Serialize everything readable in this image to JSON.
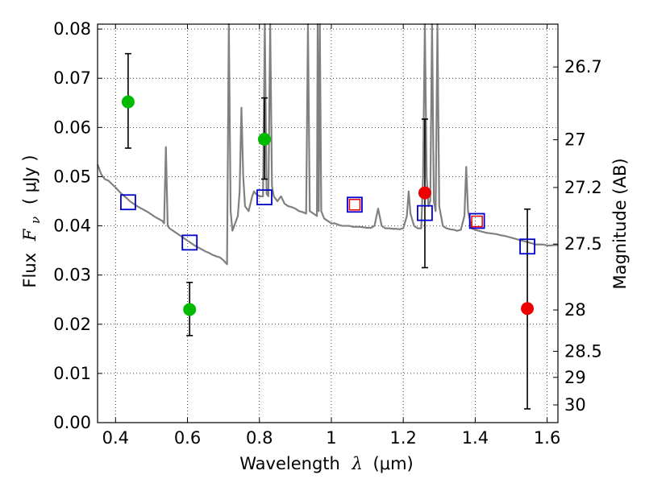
{
  "chart_data": {
    "type": "scatter",
    "title": "",
    "xlabel": "Wavelength",
    "xlabel_symbol": "λ",
    "xlabel_unit": "(μm)",
    "ylabel": "Flux",
    "ylabel_symbol": "F",
    "ylabel_symbol_sub": "ν",
    "ylabel_unit": "( μJy )",
    "y2label": "Magnitude (AB)",
    "xlim": [
      0.35,
      1.63
    ],
    "ylim": [
      0.0,
      0.081
    ],
    "grid": true,
    "x_ticks": [
      {
        "value": 0.4,
        "label": "0.4"
      },
      {
        "value": 0.6,
        "label": "0.6"
      },
      {
        "value": 0.8,
        "label": "0.8"
      },
      {
        "value": 1.0,
        "label": "1"
      },
      {
        "value": 1.2,
        "label": "1.2"
      },
      {
        "value": 1.4,
        "label": "1.4"
      },
      {
        "value": 1.6,
        "label": "1.6"
      }
    ],
    "y_ticks": [
      {
        "value": 0.0,
        "label": "0.00"
      },
      {
        "value": 0.01,
        "label": "0.01"
      },
      {
        "value": 0.02,
        "label": "0.02"
      },
      {
        "value": 0.03,
        "label": "0.03"
      },
      {
        "value": 0.04,
        "label": "0.04"
      },
      {
        "value": 0.05,
        "label": "0.05"
      },
      {
        "value": 0.06,
        "label": "0.06"
      },
      {
        "value": 0.07,
        "label": "0.07"
      },
      {
        "value": 0.08,
        "label": "0.08"
      }
    ],
    "y2_ticks": [
      {
        "flux": 0.0723,
        "label": "26.7"
      },
      {
        "flux": 0.0575,
        "label": "27"
      },
      {
        "flux": 0.0478,
        "label": "27.2"
      },
      {
        "flux": 0.0363,
        "label": "27.5"
      },
      {
        "flux": 0.0229,
        "label": "28"
      },
      {
        "flux": 0.0145,
        "label": "28.5"
      },
      {
        "flux": 0.0092,
        "label": "29"
      },
      {
        "flux": 0.0036,
        "label": "30"
      }
    ],
    "series": [
      {
        "kind": "spectrum",
        "color": "#808080",
        "points": [
          [
            0.35,
            0.0525
          ],
          [
            0.36,
            0.0505
          ],
          [
            0.37,
            0.0495
          ],
          [
            0.38,
            0.0492
          ],
          [
            0.39,
            0.0485
          ],
          [
            0.4,
            0.0478
          ],
          [
            0.41,
            0.047
          ],
          [
            0.42,
            0.0463
          ],
          [
            0.43,
            0.0457
          ],
          [
            0.44,
            0.045
          ],
          [
            0.45,
            0.0445
          ],
          [
            0.46,
            0.044
          ],
          [
            0.47,
            0.0436
          ],
          [
            0.48,
            0.0432
          ],
          [
            0.49,
            0.0428
          ],
          [
            0.5,
            0.0423
          ],
          [
            0.51,
            0.0418
          ],
          [
            0.52,
            0.0414
          ],
          [
            0.53,
            0.041
          ],
          [
            0.535,
            0.0405
          ],
          [
            0.54,
            0.056
          ],
          [
            0.545,
            0.04
          ],
          [
            0.55,
            0.0395
          ],
          [
            0.56,
            0.039
          ],
          [
            0.57,
            0.0385
          ],
          [
            0.58,
            0.038
          ],
          [
            0.59,
            0.0375
          ],
          [
            0.6,
            0.037
          ],
          [
            0.61,
            0.0365
          ],
          [
            0.62,
            0.036
          ],
          [
            0.63,
            0.0356
          ],
          [
            0.64,
            0.0352
          ],
          [
            0.65,
            0.0348
          ],
          [
            0.66,
            0.0345
          ],
          [
            0.67,
            0.0341
          ],
          [
            0.68,
            0.0338
          ],
          [
            0.69,
            0.0336
          ],
          [
            0.7,
            0.033
          ],
          [
            0.71,
            0.0322
          ],
          [
            0.715,
            0.081
          ],
          [
            0.72,
            0.043
          ],
          [
            0.725,
            0.039
          ],
          [
            0.73,
            0.04
          ],
          [
            0.74,
            0.042
          ],
          [
            0.745,
            0.047
          ],
          [
            0.75,
            0.064
          ],
          [
            0.755,
            0.05
          ],
          [
            0.76,
            0.044
          ],
          [
            0.77,
            0.043
          ],
          [
            0.78,
            0.046
          ],
          [
            0.785,
            0.047
          ],
          [
            0.79,
            0.0465
          ],
          [
            0.8,
            0.046
          ],
          [
            0.81,
            0.046
          ],
          [
            0.815,
            0.081
          ],
          [
            0.82,
            0.0465
          ],
          [
            0.825,
            0.046
          ],
          [
            0.83,
            0.081
          ],
          [
            0.835,
            0.048
          ],
          [
            0.84,
            0.046
          ],
          [
            0.85,
            0.045
          ],
          [
            0.86,
            0.046
          ],
          [
            0.87,
            0.0445
          ],
          [
            0.88,
            0.044
          ],
          [
            0.89,
            0.0438
          ],
          [
            0.9,
            0.0435
          ],
          [
            0.91,
            0.043
          ],
          [
            0.92,
            0.0428
          ],
          [
            0.93,
            0.0425
          ],
          [
            0.935,
            0.081
          ],
          [
            0.94,
            0.043
          ],
          [
            0.95,
            0.0425
          ],
          [
            0.96,
            0.042
          ],
          [
            0.962,
            0.081
          ],
          [
            0.965,
            0.043
          ],
          [
            0.968,
            0.081
          ],
          [
            0.972,
            0.043
          ],
          [
            0.98,
            0.0415
          ],
          [
            0.99,
            0.041
          ],
          [
            1.0,
            0.0405
          ],
          [
            1.01,
            0.0405
          ],
          [
            1.02,
            0.0402
          ],
          [
            1.03,
            0.04
          ],
          [
            1.04,
            0.04
          ],
          [
            1.05,
            0.04
          ],
          [
            1.06,
            0.0398
          ],
          [
            1.07,
            0.0398
          ],
          [
            1.08,
            0.0398
          ],
          [
            1.09,
            0.0397
          ],
          [
            1.1,
            0.0396
          ],
          [
            1.11,
            0.0396
          ],
          [
            1.12,
            0.04
          ],
          [
            1.13,
            0.0435
          ],
          [
            1.14,
            0.04
          ],
          [
            1.15,
            0.0395
          ],
          [
            1.16,
            0.0395
          ],
          [
            1.17,
            0.0394
          ],
          [
            1.18,
            0.0394
          ],
          [
            1.19,
            0.0393
          ],
          [
            1.2,
            0.0395
          ],
          [
            1.21,
            0.042
          ],
          [
            1.215,
            0.047
          ],
          [
            1.22,
            0.0425
          ],
          [
            1.23,
            0.04
          ],
          [
            1.24,
            0.0395
          ],
          [
            1.25,
            0.0395
          ],
          [
            1.255,
            0.05
          ],
          [
            1.26,
            0.081
          ],
          [
            1.265,
            0.05
          ],
          [
            1.27,
            0.044
          ],
          [
            1.275,
            0.045
          ],
          [
            1.28,
            0.081
          ],
          [
            1.285,
            0.045
          ],
          [
            1.29,
            0.043
          ],
          [
            1.295,
            0.081
          ],
          [
            1.3,
            0.044
          ],
          [
            1.31,
            0.04
          ],
          [
            1.32,
            0.0395
          ],
          [
            1.33,
            0.0393
          ],
          [
            1.34,
            0.0392
          ],
          [
            1.35,
            0.039
          ],
          [
            1.36,
            0.0392
          ],
          [
            1.37,
            0.042
          ],
          [
            1.375,
            0.052
          ],
          [
            1.38,
            0.043
          ],
          [
            1.39,
            0.0395
          ],
          [
            1.4,
            0.0392
          ],
          [
            1.41,
            0.039
          ],
          [
            1.42,
            0.0388
          ],
          [
            1.43,
            0.0386
          ],
          [
            1.44,
            0.0385
          ],
          [
            1.45,
            0.0384
          ],
          [
            1.46,
            0.0383
          ],
          [
            1.47,
            0.0381
          ],
          [
            1.48,
            0.038
          ],
          [
            1.49,
            0.0378
          ],
          [
            1.5,
            0.0376
          ],
          [
            1.51,
            0.0374
          ],
          [
            1.52,
            0.0372
          ],
          [
            1.53,
            0.037
          ],
          [
            1.54,
            0.0368
          ],
          [
            1.55,
            0.0366
          ],
          [
            1.56,
            0.0364
          ],
          [
            1.57,
            0.0362
          ],
          [
            1.58,
            0.0362
          ],
          [
            1.59,
            0.0362
          ],
          [
            1.6,
            0.036
          ],
          [
            1.61,
            0.036
          ],
          [
            1.62,
            0.0361
          ],
          [
            1.63,
            0.0361
          ]
        ]
      },
      {
        "kind": "model-photometry",
        "marker": "square",
        "color": "#0000cc",
        "points": [
          {
            "x": 0.435,
            "y": 0.0448
          },
          {
            "x": 0.606,
            "y": 0.0366
          },
          {
            "x": 0.814,
            "y": 0.0458
          },
          {
            "x": 1.065,
            "y": 0.0443
          },
          {
            "x": 1.26,
            "y": 0.0426
          },
          {
            "x": 1.405,
            "y": 0.041
          },
          {
            "x": 1.545,
            "y": 0.0358
          }
        ]
      },
      {
        "kind": "model-photometry-small",
        "marker": "square",
        "color": "#ee0000",
        "points": [
          {
            "x": 1.065,
            "y": 0.0443
          },
          {
            "x": 1.405,
            "y": 0.0409
          }
        ]
      },
      {
        "kind": "observed",
        "marker": "circle",
        "color": "#00bb00",
        "points": [
          {
            "x": 0.435,
            "y": 0.0652,
            "ylo": 0.0558,
            "yhi": 0.075
          },
          {
            "x": 0.606,
            "y": 0.023,
            "ylo": 0.0177,
            "yhi": 0.0285
          },
          {
            "x": 0.814,
            "y": 0.0576,
            "ylo": 0.0495,
            "yhi": 0.066
          }
        ]
      },
      {
        "kind": "observed",
        "marker": "circle",
        "color": "#ee0000",
        "points": [
          {
            "x": 1.26,
            "y": 0.0467,
            "ylo": 0.0315,
            "yhi": 0.0617
          },
          {
            "x": 1.545,
            "y": 0.0232,
            "ylo": 0.0028,
            "yhi": 0.0434
          }
        ]
      }
    ]
  }
}
